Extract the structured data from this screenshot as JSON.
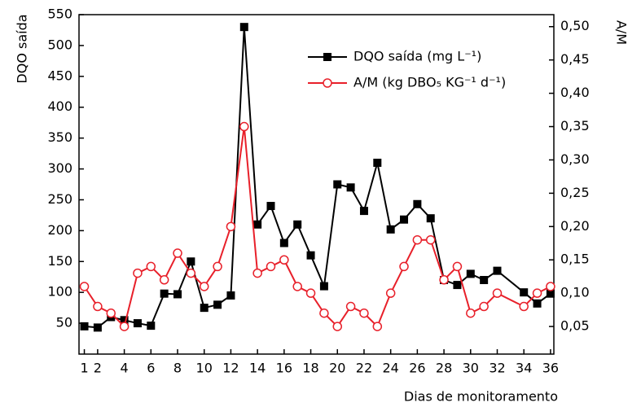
{
  "chart_data": {
    "type": "line",
    "y_label": "DQO saída",
    "y2_label": "A/M",
    "x_label": "Dias de monitoramento",
    "x": [
      1,
      2,
      3,
      4,
      5,
      6,
      7,
      8,
      9,
      10,
      11,
      12,
      13,
      14,
      15,
      16,
      17,
      18,
      19,
      20,
      21,
      22,
      23,
      24,
      25,
      26,
      27,
      28,
      29,
      30,
      31,
      32,
      34,
      35,
      36
    ],
    "series": [
      {
        "name": "DQO saída (mg L⁻¹)",
        "color": "#000000",
        "marker": "square",
        "axis": "y",
        "values": [
          45,
          43,
          60,
          55,
          50,
          46,
          98,
          97,
          150,
          75,
          80,
          95,
          530,
          210,
          240,
          180,
          210,
          160,
          110,
          275,
          270,
          232,
          310,
          202,
          218,
          243,
          220,
          120,
          112,
          130,
          120,
          135,
          100,
          82,
          98
        ]
      },
      {
        "name": "A/M (kg DBO₅ KG⁻¹ d⁻¹)",
        "color": "#e8202a",
        "marker": "circle-open",
        "axis": "y2",
        "values": [
          0.11,
          0.08,
          0.07,
          0.05,
          0.13,
          0.14,
          0.12,
          0.16,
          0.13,
          0.11,
          0.14,
          0.2,
          0.35,
          0.13,
          0.14,
          0.15,
          0.11,
          0.1,
          0.07,
          0.05,
          0.08,
          0.07,
          0.05,
          0.1,
          0.14,
          0.18,
          0.18,
          0.12,
          0.14,
          0.07,
          0.08,
          0.1,
          0.08,
          0.1,
          0.11
        ]
      }
    ],
    "xlim": [
      0.6,
      36.25
    ],
    "xticks": [
      1,
      2,
      4,
      6,
      8,
      10,
      12,
      14,
      16,
      18,
      20,
      22,
      24,
      26,
      28,
      30,
      32,
      34,
      36
    ],
    "ylim": [
      0,
      550
    ],
    "yticks": [
      50,
      100,
      150,
      200,
      250,
      300,
      350,
      400,
      450,
      500,
      550
    ],
    "y2lim": [
      0.0086,
      0.518
    ],
    "y2ticks": [
      {
        "value": 0.05,
        "label": "0,05"
      },
      {
        "value": 0.1,
        "label": "0,10"
      },
      {
        "value": 0.15,
        "label": "0,15"
      },
      {
        "value": 0.2,
        "label": "0,20"
      },
      {
        "value": 0.25,
        "label": "0,25"
      },
      {
        "value": 0.3,
        "label": "0,30"
      },
      {
        "value": 0.35,
        "label": "0,35"
      },
      {
        "value": 0.4,
        "label": "0,40"
      },
      {
        "value": 0.45,
        "label": "0,45"
      },
      {
        "value": 0.5,
        "label": "0,50"
      }
    ],
    "legend": "upper center"
  }
}
